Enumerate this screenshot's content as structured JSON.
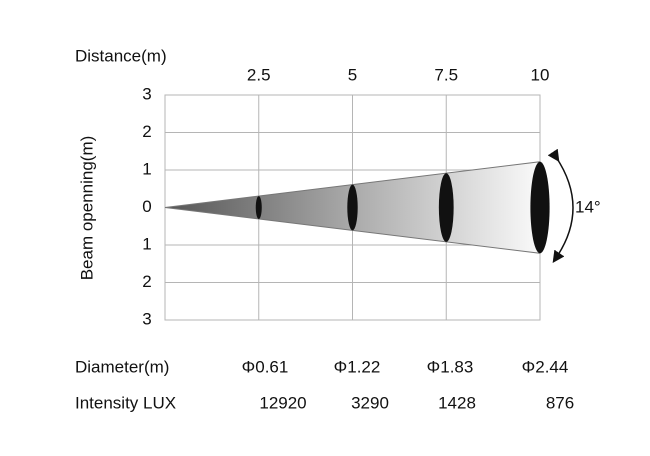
{
  "chart_data": {
    "type": "beam",
    "title": "Distance(m)",
    "y_label": "Beam openning(m)",
    "xlim": [
      0,
      10
    ],
    "xticks": [
      2.5,
      5,
      7.5,
      10
    ],
    "ylim": [
      -3,
      3
    ],
    "yticks": [
      3,
      2,
      1,
      0,
      {
        "value": -1,
        "label": "1"
      },
      {
        "value": -2,
        "label": "2"
      },
      {
        "value": -3,
        "label": "3"
      }
    ],
    "grid": true,
    "beam_angle_label": "14°",
    "rows": [
      {
        "name": "Diameter(m)",
        "values": [
          0.61,
          1.22,
          1.83,
          2.44
        ],
        "value_labels": [
          "Φ0.61",
          "Φ1.22",
          "Φ1.83",
          "Φ2.44"
        ]
      },
      {
        "name": "Intensity LUX",
        "values": [
          12920,
          3290,
          1428,
          876
        ]
      }
    ]
  }
}
